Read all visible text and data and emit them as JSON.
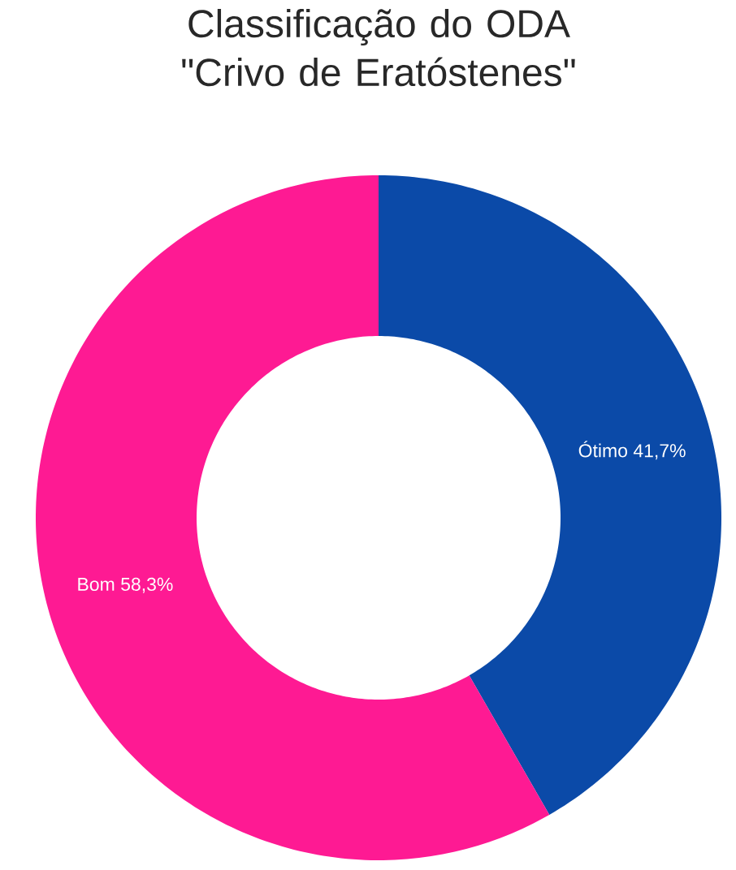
{
  "chart_data": {
    "type": "donut",
    "title": "Classificação do ODA \"Crivo de Eratóstenes\"",
    "categories": [
      "Ótimo",
      "Bom"
    ],
    "values": [
      41.7,
      58.3
    ],
    "value_labels": [
      "41,7%",
      "58,3%"
    ],
    "colors": [
      "#0b4aa8",
      "#fe1a93"
    ]
  }
}
